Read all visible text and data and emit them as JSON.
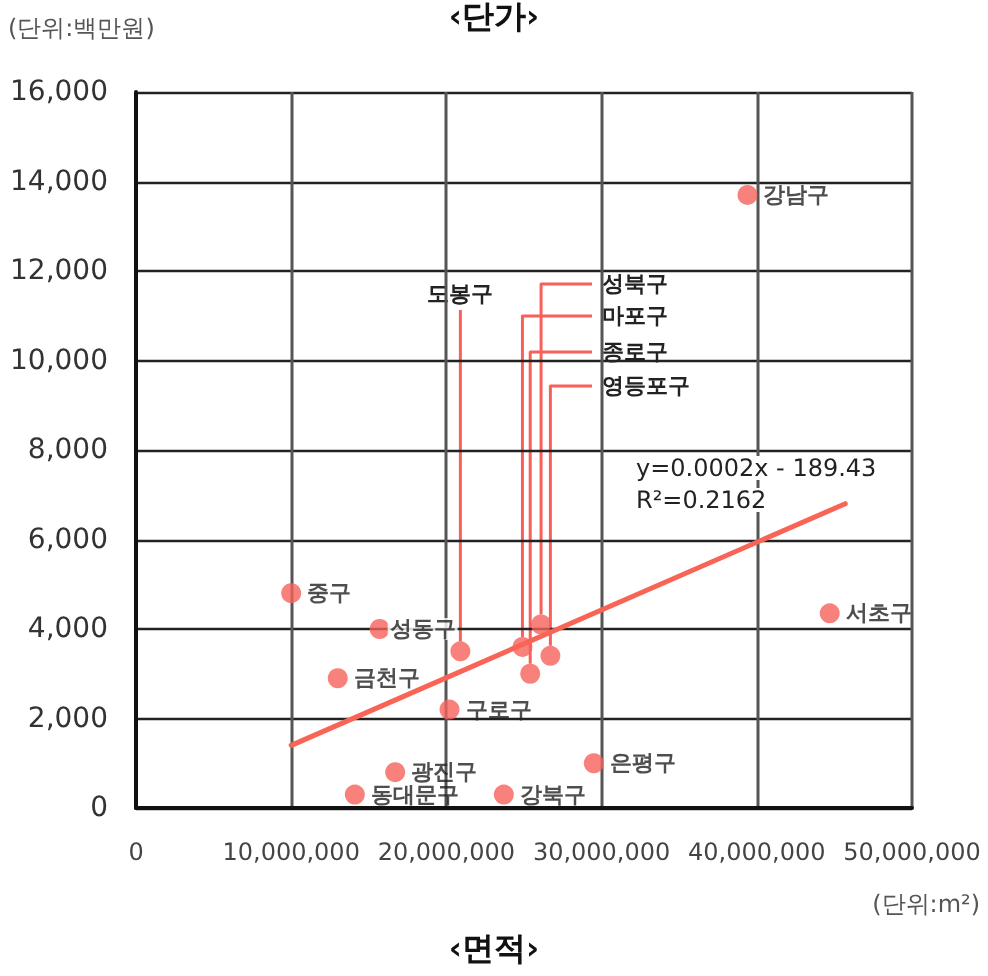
{
  "chart_data": {
    "type": "scatter",
    "ylabel": "‹단가›",
    "xlabel": "‹면적›",
    "annotations": [
      "(단위:백만원)",
      "(단위:m²)",
      "y=0.0002x - 189.43",
      "R²=0.2162"
    ],
    "xlim": [
      0,
      50000000
    ],
    "xticks": [
      0,
      {
        "value": 10000000,
        "label": "10,000,000"
      },
      {
        "value": 20000000,
        "label": "20,000,000"
      },
      {
        "value": 30000000,
        "label": "30,000,000"
      },
      {
        "value": 40000000,
        "label": "40,000,000"
      },
      {
        "value": 50000000,
        "label": "50,000,000"
      }
    ],
    "ylim": [
      0,
      16000
    ],
    "yticks": [
      0,
      {
        "value": 2000,
        "label": "2,000"
      },
      {
        "value": 4000,
        "label": "4,000"
      },
      {
        "value": 6000,
        "label": "6,000"
      },
      {
        "value": 8000,
        "label": "8,000"
      },
      {
        "value": 10000,
        "label": "10,000"
      },
      {
        "value": 12000,
        "label": "12,000"
      },
      {
        "value": 14000,
        "label": "14,000"
      },
      {
        "value": 16000,
        "label": "16,000"
      }
    ],
    "grid": true,
    "marker": "circle",
    "series": [
      {
        "color": "#f8615a",
        "x": [
          39400000,
          20900000,
          26100000,
          24900000,
          25400000,
          26700000,
          10000000,
          44700000,
          15700000,
          13000000,
          20200000,
          16700000,
          14100000,
          23700000,
          29500000
        ],
        "values": [
          13700,
          3500,
          4100,
          3600,
          3000,
          3400,
          4800,
          4350,
          4000,
          2900,
          2200,
          800,
          300,
          300,
          1000
        ],
        "value_labels": [
          "강남구",
          "도봉구",
          "성북구",
          "마포구",
          "종로구",
          "영등포구",
          "중구",
          "서초구",
          "성동구",
          "금천구",
          "구로구",
          "광진구",
          "동대문구",
          "강북구",
          "은평구"
        ]
      },
      {
        "type": "line",
        "color": "#f86455",
        "marker": "none",
        "x": [
          10000000,
          45700000
        ],
        "values": [
          1400,
          6800
        ]
      }
    ]
  }
}
